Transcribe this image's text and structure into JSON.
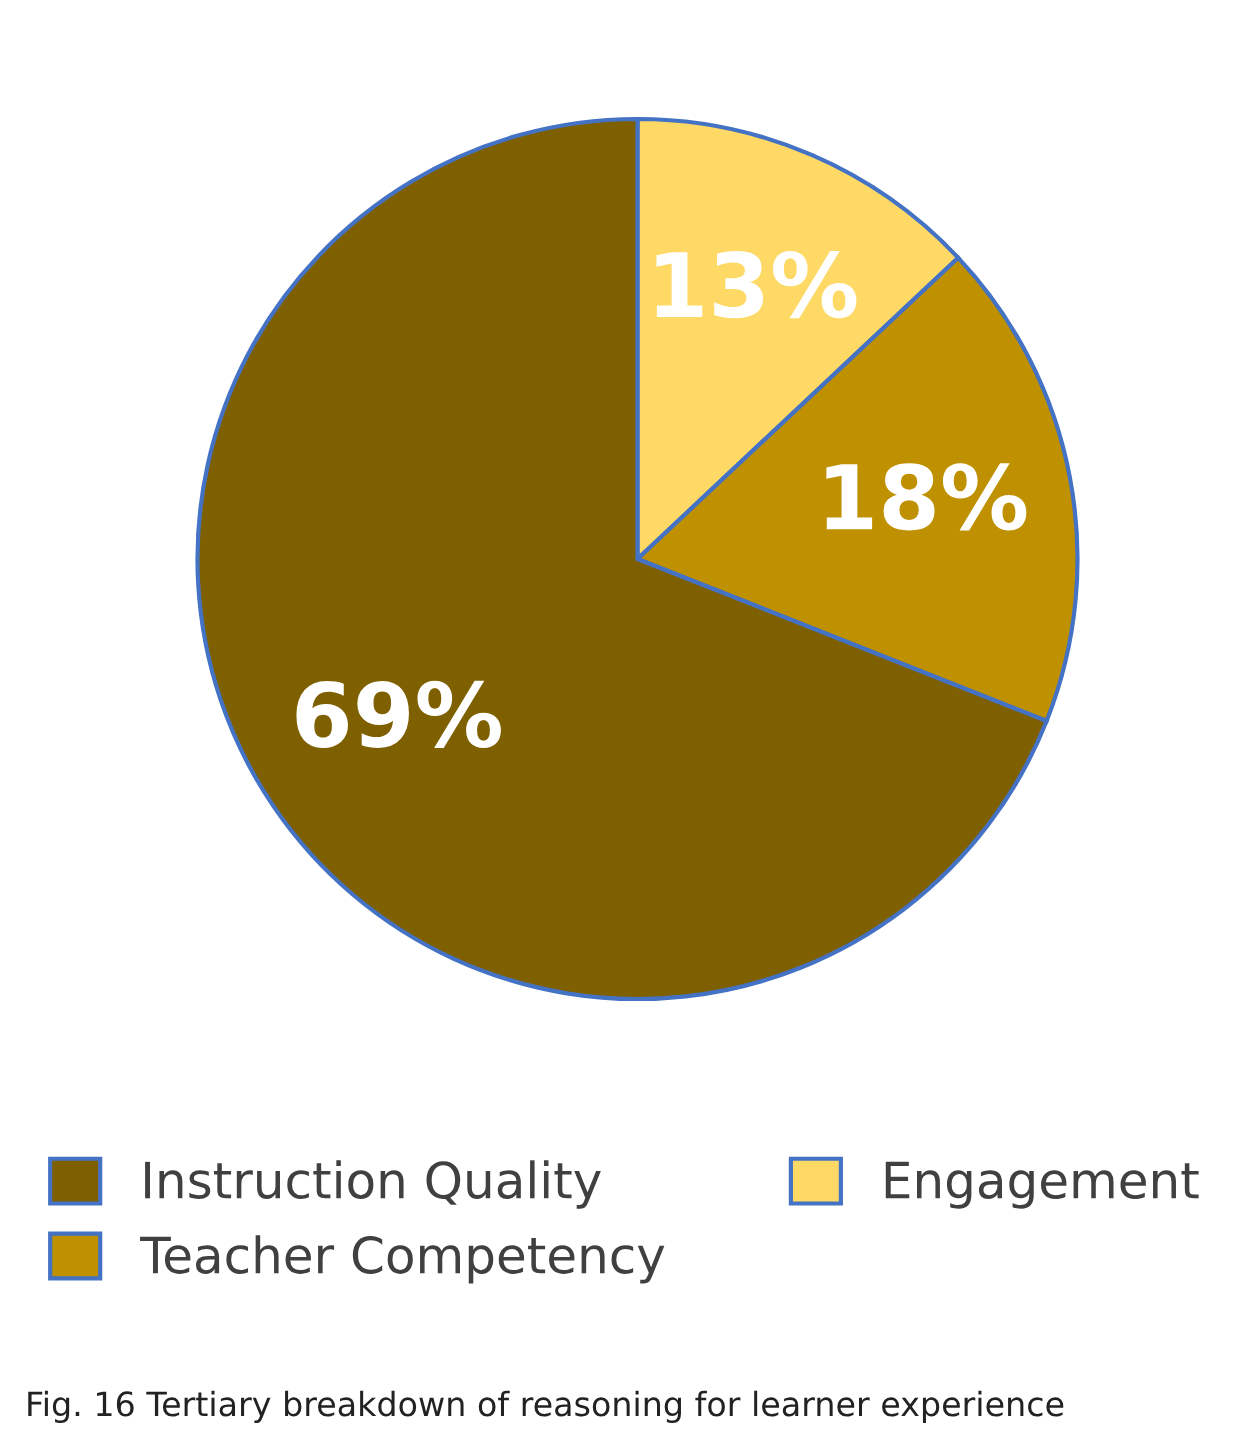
{
  "chart_data": {
    "type": "pie",
    "categories": [
      "Engagement",
      "Teacher Competency",
      "Instruction Quality"
    ],
    "values": [
      13,
      18,
      69
    ],
    "colors": [
      "#ffd966",
      "#bf9000",
      "#7f6000"
    ],
    "value_labels": [
      "13%",
      "18%",
      "69%"
    ],
    "legend": "bottom",
    "annotations": [
      "Fig. 16 Tertiary breakdown of reasoning for learner experience"
    ]
  }
}
